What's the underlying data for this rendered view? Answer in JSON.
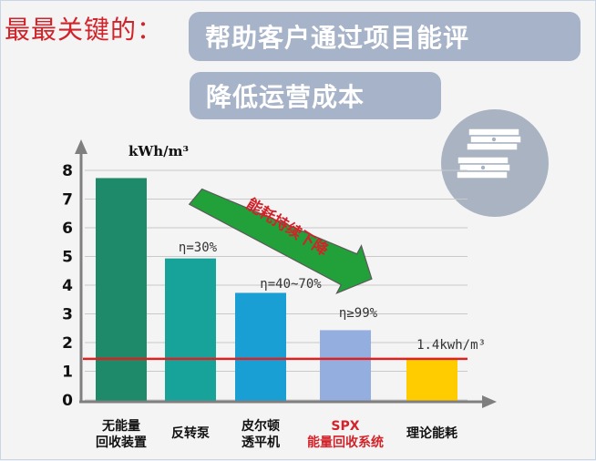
{
  "header": {
    "lead_text": "最最关键的：",
    "banner_1": "帮助客户通过项目能评",
    "banner_2": "降低运营成本"
  },
  "icons": {
    "badge": "money-stack-icon"
  },
  "arrow_text": "能耗持续下降",
  "colors": {
    "heading": "#d2232a",
    "banner_bg": "#a6b3c8",
    "reference_line": "#e02020",
    "arrow_fill": "#22a03a"
  },
  "chart_data": {
    "type": "bar",
    "ylabel": "kWh/m³",
    "ylim": [
      0,
      8
    ],
    "yticks": [
      "0",
      "1",
      "2",
      "3",
      "4",
      "5",
      "6",
      "7",
      "8"
    ],
    "grid": true,
    "categories": [
      [
        "无能量",
        "回收装置"
      ],
      [
        "反转泵"
      ],
      [
        "皮尔顿",
        "透平机"
      ],
      [
        "SPX",
        "能量回收系统"
      ],
      [
        "理论能耗"
      ]
    ],
    "values": [
      7.7,
      4.9,
      3.7,
      2.4,
      1.4
    ],
    "bar_colors": [
      "#1e8a6a",
      "#17a39a",
      "#1a9fd4",
      "#94aee0",
      "#ffcc00"
    ],
    "category_colors": [
      "#111111",
      "#111111",
      "#111111",
      "#d2232a",
      "#111111"
    ],
    "bar_labels": [
      "",
      "η=30%",
      "η=40~70%",
      "η≥99%",
      "1.4kwh/m³"
    ],
    "reference_line": 1.4
  }
}
